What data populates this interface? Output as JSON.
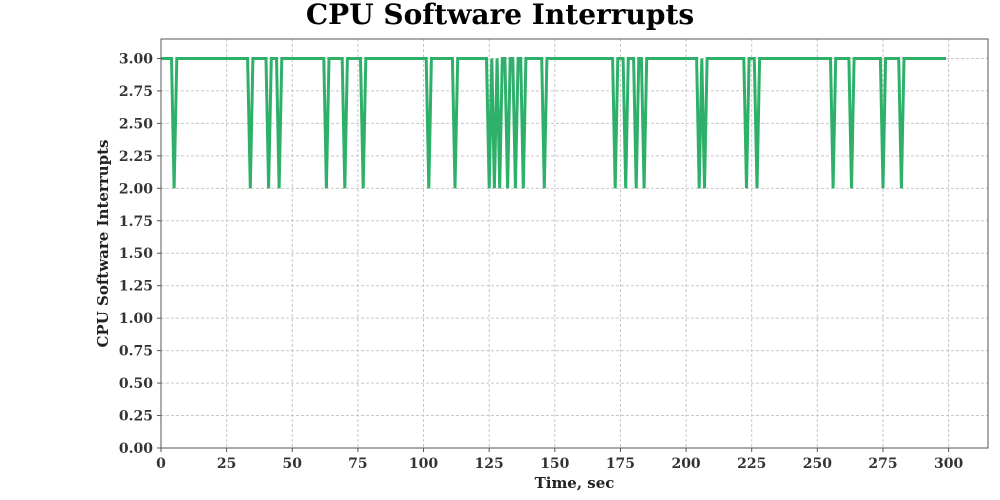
{
  "chart_data": {
    "type": "line",
    "title": "CPU Software Interrupts",
    "xlabel": "Time, sec",
    "ylabel": "CPU Software Interrupts",
    "xlim": [
      0,
      315
    ],
    "ylim": [
      0,
      3.15
    ],
    "x_ticks": [
      0,
      25,
      50,
      75,
      100,
      125,
      150,
      175,
      200,
      225,
      250,
      275,
      300
    ],
    "y_ticks": [
      0,
      0.25,
      0.5,
      0.75,
      1.0,
      1.25,
      1.5,
      1.75,
      2.0,
      2.25,
      2.5,
      2.75,
      3.0
    ],
    "y_tick_labels": [
      "0.00",
      "0.25",
      "0.50",
      "0.75",
      "1.00",
      "1.25",
      "1.50",
      "1.75",
      "2.00",
      "2.25",
      "2.50",
      "2.75",
      "3.00"
    ],
    "grid": true,
    "series": [
      {
        "color": "#2eb06a",
        "x": [
          0,
          4,
          5,
          6,
          33,
          34,
          35,
          40,
          41,
          42,
          44,
          45,
          46,
          62,
          63,
          64,
          69,
          70,
          71,
          76,
          77,
          78,
          101,
          102,
          103,
          111,
          112,
          113,
          124,
          125,
          126,
          127,
          128,
          129,
          130,
          131,
          132,
          133,
          134,
          135,
          136,
          137,
          138,
          139,
          145,
          146,
          147,
          172,
          173,
          174,
          176,
          177,
          178,
          180,
          181,
          182,
          183,
          184,
          185,
          204,
          205,
          206,
          207,
          208,
          222,
          223,
          224,
          226,
          227,
          228,
          255,
          256,
          257,
          262,
          263,
          264,
          274,
          275,
          276,
          281,
          282,
          283,
          299
        ],
        "y": [
          3,
          3,
          2,
          3,
          3,
          2,
          3,
          3,
          2,
          3,
          3,
          2,
          3,
          3,
          2,
          3,
          3,
          2,
          3,
          3,
          2,
          3,
          3,
          2,
          3,
          3,
          2,
          3,
          3,
          2,
          3,
          2,
          3,
          2,
          3,
          3,
          2,
          3,
          3,
          2,
          3,
          3,
          2,
          3,
          3,
          2,
          3,
          3,
          2,
          3,
          3,
          2,
          3,
          3,
          2,
          3,
          3,
          2,
          3,
          3,
          2,
          3,
          2,
          3,
          3,
          2,
          3,
          3,
          2,
          3,
          3,
          2,
          3,
          3,
          2,
          3,
          3,
          2,
          3,
          3,
          2,
          3,
          3
        ]
      }
    ]
  }
}
